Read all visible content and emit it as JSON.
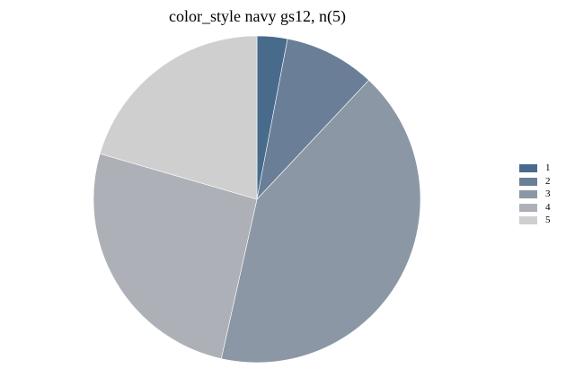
{
  "chart_data": {
    "type": "pie",
    "title": "color_style navy gs12, n(5)",
    "slices": [
      {
        "label": "1",
        "value": 3.0,
        "color": "#486b8c"
      },
      {
        "label": "2",
        "value": 9.0,
        "color": "#6a7f97"
      },
      {
        "label": "3",
        "value": 41.5,
        "color": "#8b97a4"
      },
      {
        "label": "4",
        "value": 26.0,
        "color": "#adb1b7"
      },
      {
        "label": "5",
        "value": 20.5,
        "color": "#cfcfcf"
      }
    ],
    "legend_position": "right"
  }
}
